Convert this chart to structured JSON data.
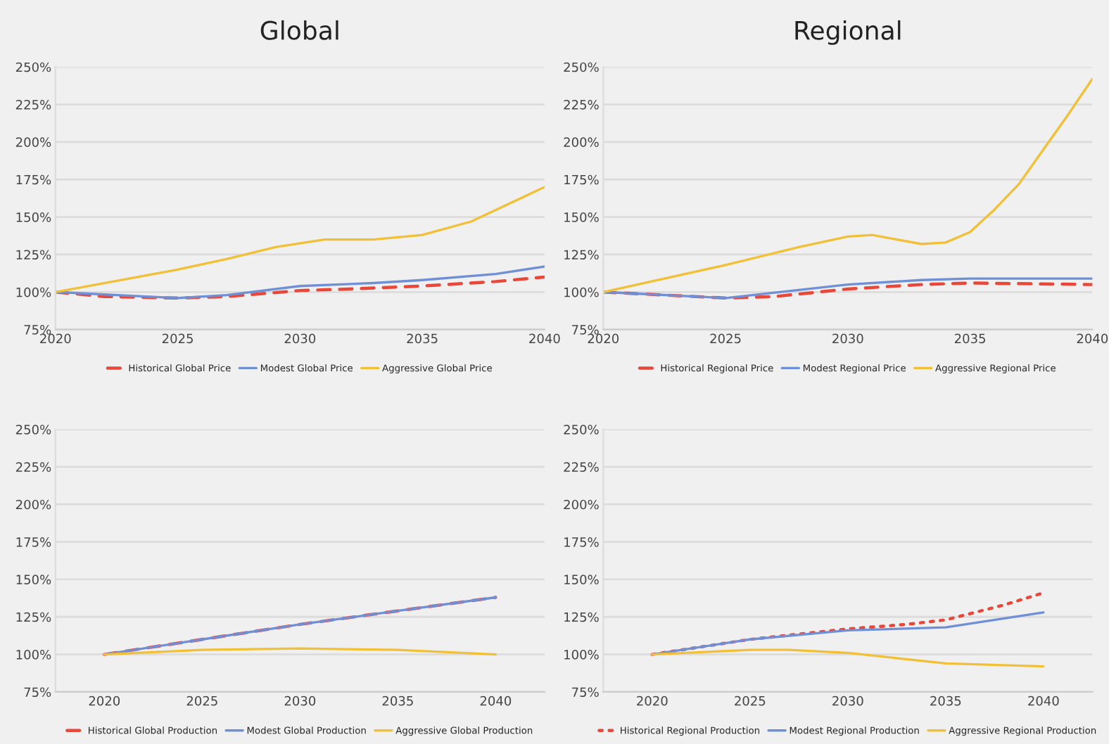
{
  "chart_data": [
    {
      "type": "line",
      "title": "Global",
      "xlim": [
        2020,
        2040
      ],
      "xticks": [
        2020,
        2025,
        2030,
        2035,
        2040
      ],
      "ylim": [
        75,
        250
      ],
      "yticks": [
        {
          "value": 75,
          "label": "75%"
        },
        {
          "value": 100,
          "label": "100%"
        },
        {
          "value": 125,
          "label": "125%"
        },
        {
          "value": 150,
          "label": "150%"
        },
        {
          "value": 175,
          "label": "175%"
        },
        {
          "value": 200,
          "label": "200%"
        },
        {
          "value": 225,
          "label": "225%"
        },
        {
          "value": 250,
          "label": "250%"
        }
      ],
      "grid": "y",
      "legend": "bottom",
      "series": [
        {
          "name": "Historical Global Price",
          "color": "#e8473a",
          "line_style": "dashed",
          "x": [
            2020,
            2022,
            2025,
            2027,
            2030,
            2032,
            2035,
            2038,
            2040
          ],
          "values": [
            100,
            97,
            96,
            97,
            101,
            102,
            104,
            107,
            110
          ]
        },
        {
          "name": "Modest Global Price",
          "color": "#6f8fd6",
          "line_style": "solid",
          "x": [
            2020,
            2025,
            2027,
            2030,
            2033,
            2035,
            2038,
            2040
          ],
          "values": [
            100,
            96,
            98,
            104,
            106,
            108,
            112,
            117
          ]
        },
        {
          "name": "Aggressive Global Price",
          "color": "#f2c037",
          "line_style": "solid",
          "x": [
            2020,
            2025,
            2027,
            2029,
            2031,
            2033,
            2035,
            2037,
            2040
          ],
          "values": [
            100,
            115,
            122,
            130,
            135,
            135,
            138,
            147,
            170
          ]
        }
      ]
    },
    {
      "type": "line",
      "title": "Regional",
      "xlim": [
        2020,
        2040
      ],
      "xticks": [
        2020,
        2025,
        2030,
        2035,
        2040
      ],
      "ylim": [
        75,
        250
      ],
      "yticks": [
        {
          "value": 75,
          "label": "75%"
        },
        {
          "value": 100,
          "label": "100%"
        },
        {
          "value": 125,
          "label": "125%"
        },
        {
          "value": 150,
          "label": "150%"
        },
        {
          "value": 175,
          "label": "175%"
        },
        {
          "value": 200,
          "label": "200%"
        },
        {
          "value": 225,
          "label": "225%"
        },
        {
          "value": 250,
          "label": "250%"
        }
      ],
      "grid": "y",
      "legend": "bottom",
      "series": [
        {
          "name": "Historical Regional Price",
          "color": "#e8473a",
          "line_style": "dashed",
          "x": [
            2020,
            2025,
            2027,
            2030,
            2033,
            2035,
            2040
          ],
          "values": [
            100,
            96,
            97,
            102,
            105,
            106,
            105
          ]
        },
        {
          "name": "Modest Regional Price",
          "color": "#6f8fd6",
          "line_style": "solid",
          "x": [
            2020,
            2025,
            2030,
            2033,
            2035,
            2040
          ],
          "values": [
            100,
            96,
            105,
            108,
            109,
            109
          ]
        },
        {
          "name": "Aggressive Regional Price",
          "color": "#f2c037",
          "line_style": "solid",
          "x": [
            2020,
            2025,
            2028,
            2030,
            2031,
            2033,
            2034,
            2035,
            2036,
            2037,
            2038,
            2039,
            2040
          ],
          "values": [
            100,
            118,
            130,
            137,
            138,
            132,
            133,
            140,
            155,
            172,
            195,
            218,
            242
          ]
        }
      ]
    },
    {
      "type": "line",
      "xlim": [
        2017.5,
        2042.5
      ],
      "xticks": [
        2020,
        2025,
        2030,
        2035,
        2040
      ],
      "ylim": [
        75,
        250
      ],
      "yticks": [
        {
          "value": 75,
          "label": "75%"
        },
        {
          "value": 100,
          "label": "100%"
        },
        {
          "value": 125,
          "label": "125%"
        },
        {
          "value": 150,
          "label": "150%"
        },
        {
          "value": 175,
          "label": "175%"
        },
        {
          "value": 200,
          "label": "200%"
        },
        {
          "value": 225,
          "label": "225%"
        },
        {
          "value": 250,
          "label": "250%"
        }
      ],
      "grid": "y",
      "legend": "bottom",
      "series": [
        {
          "name": "Historical Global Production",
          "color": "#e8473a",
          "line_style": "dashed",
          "x": [
            2020,
            2025,
            2030,
            2035,
            2040
          ],
          "values": [
            100,
            110,
            120,
            129,
            138
          ]
        },
        {
          "name": "Modest Global Production",
          "color": "#6f8fd6",
          "line_style": "solid",
          "x": [
            2020,
            2025,
            2030,
            2035,
            2040
          ],
          "values": [
            100,
            110,
            120,
            129,
            138
          ]
        },
        {
          "name": "Aggressive Global Production",
          "color": "#f2c037",
          "line_style": "solid",
          "x": [
            2020,
            2025,
            2030,
            2035,
            2040
          ],
          "values": [
            100,
            103,
            104,
            103,
            100
          ]
        }
      ]
    },
    {
      "type": "line",
      "xlim": [
        2017.5,
        2042.5
      ],
      "xticks": [
        2020,
        2025,
        2030,
        2035,
        2040
      ],
      "ylim": [
        75,
        250
      ],
      "yticks": [
        {
          "value": 75,
          "label": "75%"
        },
        {
          "value": 100,
          "label": "100%"
        },
        {
          "value": 125,
          "label": "125%"
        },
        {
          "value": 150,
          "label": "150%"
        },
        {
          "value": 175,
          "label": "175%"
        },
        {
          "value": 200,
          "label": "200%"
        },
        {
          "value": 225,
          "label": "225%"
        },
        {
          "value": 250,
          "label": "250%"
        }
      ],
      "grid": "y",
      "legend": "bottom",
      "series": [
        {
          "name": "Historical Regional Production",
          "color": "#e8473a",
          "line_style": "dotted",
          "x": [
            2020,
            2025,
            2030,
            2033,
            2035,
            2038,
            2040
          ],
          "values": [
            100,
            110,
            117,
            120,
            123,
            133,
            141
          ]
        },
        {
          "name": "Modest Regional Production",
          "color": "#6f8fd6",
          "line_style": "solid",
          "x": [
            2020,
            2025,
            2030,
            2035,
            2040
          ],
          "values": [
            100,
            110,
            116,
            118,
            128
          ]
        },
        {
          "name": "Aggressive Regional Production",
          "color": "#f2c037",
          "line_style": "solid",
          "x": [
            2020,
            2025,
            2027,
            2030,
            2035,
            2040
          ],
          "values": [
            100,
            103,
            103,
            101,
            94,
            92
          ]
        }
      ]
    }
  ]
}
